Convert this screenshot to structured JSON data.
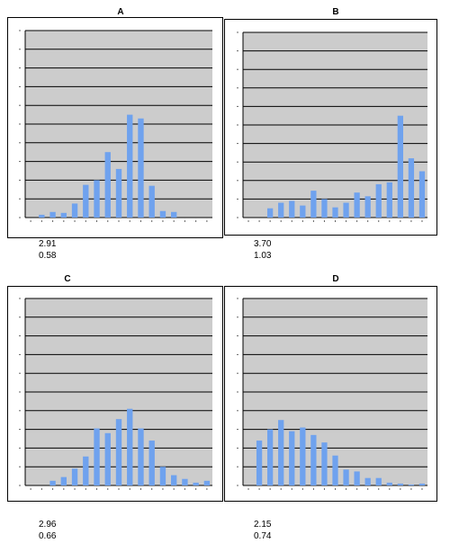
{
  "colors": {
    "plot_bg": "#cccccc",
    "bar": "#6fa2ee",
    "grid": "#000000"
  },
  "chart_data": [
    {
      "type": "bar",
      "title": "A",
      "ylim": [
        0,
        10
      ],
      "grid": true,
      "values": [
        0,
        0.15,
        0.3,
        0.25,
        0.75,
        1.75,
        2.0,
        3.5,
        2.6,
        5.5,
        5.3,
        1.7,
        0.35,
        0.3,
        0,
        0,
        0
      ],
      "stats": [
        "2.91",
        "0.58"
      ]
    },
    {
      "type": "bar",
      "title": "B",
      "ylim": [
        0,
        10
      ],
      "grid": true,
      "values": [
        0,
        0,
        0.5,
        0.8,
        0.9,
        0.65,
        1.45,
        1.0,
        0.55,
        0.8,
        1.35,
        1.15,
        1.8,
        1.9,
        5.5,
        3.2,
        2.5
      ],
      "stats": [
        "3.70",
        "1.03"
      ]
    },
    {
      "type": "bar",
      "title": "C",
      "ylim": [
        0,
        10
      ],
      "grid": true,
      "values": [
        0,
        0,
        0.25,
        0.45,
        0.9,
        1.55,
        3.05,
        2.8,
        3.55,
        4.1,
        3.05,
        2.4,
        1.0,
        0.55,
        0.35,
        0.15,
        0.25
      ],
      "stats": [
        "2.96",
        "0.66"
      ]
    },
    {
      "type": "bar",
      "title": "D",
      "ylim": [
        0,
        10
      ],
      "grid": true,
      "values": [
        0,
        2.4,
        3.0,
        3.5,
        2.9,
        3.1,
        2.7,
        2.3,
        1.6,
        0.85,
        0.75,
        0.4,
        0.4,
        0.15,
        0.1,
        0.05,
        0.1
      ],
      "stats": [
        "2.15",
        "0.74"
      ]
    }
  ]
}
